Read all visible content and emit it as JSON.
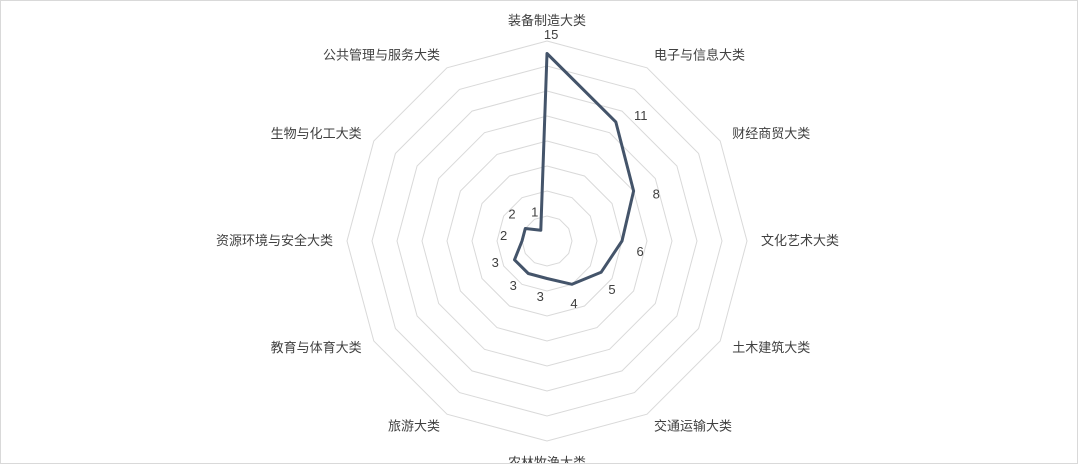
{
  "chart_data": {
    "type": "radar",
    "title": "",
    "categories": [
      "装备制造大类",
      "电子与信息大类",
      "财经商贸大类",
      "文化艺术大类",
      "土木建筑大类",
      "交通运输大类",
      "农林牧渔大类",
      "旅游大类",
      "教育与体育大类",
      "资源环境与安全大类",
      "生物与化工大类",
      "公共管理与服务大类"
    ],
    "series": [
      {
        "values": [
          15,
          11,
          8,
          6,
          5,
          4,
          3,
          3,
          3,
          2,
          2,
          1
        ],
        "data_labels": [
          "15",
          "11",
          "8",
          "6",
          "5",
          "4",
          "3",
          "3",
          "3",
          "2",
          "2",
          "1"
        ],
        "color": "#44546a"
      }
    ],
    "rlim": [
      0,
      16
    ],
    "grid": true,
    "grid_color": "#d9d9d9",
    "legend": "none"
  }
}
